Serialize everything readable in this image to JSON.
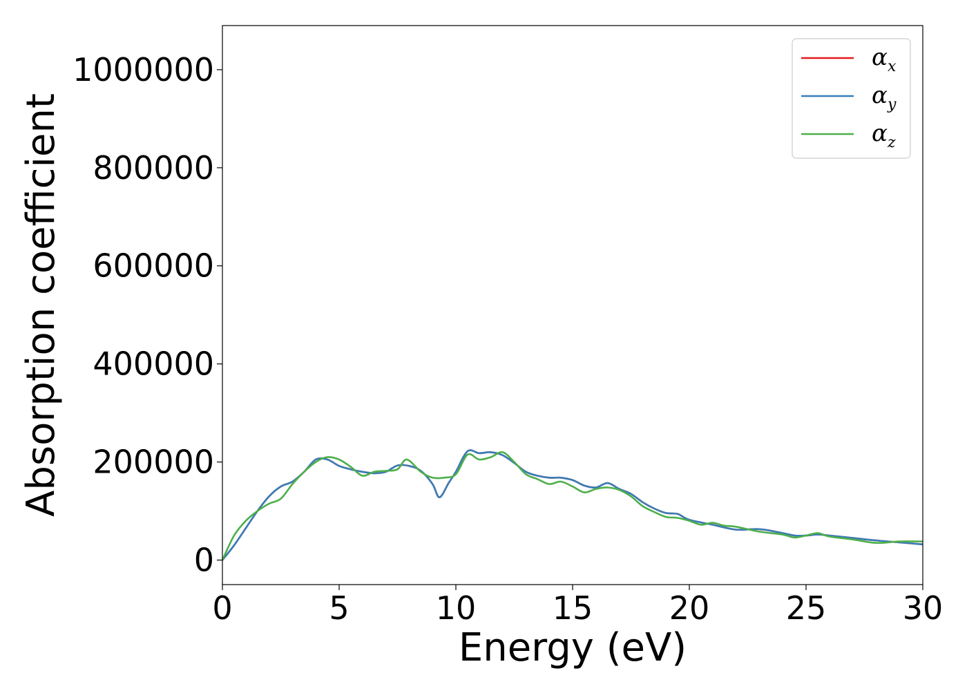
{
  "chart_data": {
    "type": "line",
    "xlabel": "Energy (eV)",
    "ylabel": "Absorption coefficient",
    "xlim": [
      0,
      30
    ],
    "ylim": [
      -50000,
      1090000
    ],
    "xticks": [
      0,
      5,
      10,
      15,
      20,
      25,
      30
    ],
    "yticks": [
      0,
      200000,
      400000,
      600000,
      800000,
      1000000
    ],
    "grid": false,
    "legend_position": "top-right",
    "series": [
      {
        "name": "α_x",
        "label_main": "α",
        "label_sub": "x",
        "color": "#e41a1c",
        "x": [
          0,
          0.5,
          1,
          1.5,
          2,
          2.5,
          3,
          3.5,
          4,
          4.5,
          5,
          5.5,
          6,
          6.5,
          7,
          7.5,
          8,
          8.5,
          9,
          9.3,
          9.7,
          10,
          10.5,
          11,
          11.5,
          12,
          12.5,
          13,
          13.5,
          14,
          14.5,
          15,
          15.5,
          16,
          16.5,
          17,
          17.5,
          18,
          18.5,
          19,
          19.5,
          20,
          21,
          22,
          23,
          24,
          24.5,
          25,
          25.5,
          26,
          27,
          28,
          29,
          30
        ],
        "y": [
          0,
          30000,
          65000,
          100000,
          130000,
          150000,
          160000,
          180000,
          205000,
          205000,
          192000,
          185000,
          180000,
          177000,
          180000,
          193000,
          192000,
          182000,
          155000,
          128000,
          158000,
          180000,
          222000,
          218000,
          220000,
          214000,
          198000,
          180000,
          172000,
          168000,
          168000,
          163000,
          152000,
          148000,
          157000,
          145000,
          135000,
          118000,
          105000,
          96000,
          94000,
          82000,
          72000,
          62000,
          63000,
          55000,
          50000,
          50000,
          52000,
          50000,
          45000,
          40000,
          36000,
          32000
        ]
      },
      {
        "name": "α_y",
        "label_main": "α",
        "label_sub": "y",
        "color": "#377eb8",
        "x": [
          0,
          0.5,
          1,
          1.5,
          2,
          2.5,
          3,
          3.5,
          4,
          4.5,
          5,
          5.5,
          6,
          6.5,
          7,
          7.5,
          8,
          8.5,
          9,
          9.3,
          9.7,
          10,
          10.5,
          11,
          11.5,
          12,
          12.5,
          13,
          13.5,
          14,
          14.5,
          15,
          15.5,
          16,
          16.5,
          17,
          17.5,
          18,
          18.5,
          19,
          19.5,
          20,
          21,
          22,
          23,
          24,
          24.5,
          25,
          25.5,
          26,
          27,
          28,
          29,
          30
        ],
        "y": [
          0,
          30000,
          65000,
          100000,
          130000,
          150000,
          160000,
          180000,
          205000,
          205000,
          192000,
          185000,
          180000,
          177000,
          180000,
          193000,
          192000,
          182000,
          155000,
          128000,
          158000,
          180000,
          222000,
          218000,
          220000,
          214000,
          198000,
          180000,
          172000,
          168000,
          168000,
          163000,
          152000,
          148000,
          157000,
          145000,
          135000,
          118000,
          105000,
          96000,
          94000,
          82000,
          72000,
          62000,
          63000,
          55000,
          50000,
          50000,
          52000,
          50000,
          45000,
          40000,
          36000,
          32000
        ]
      },
      {
        "name": "α_z",
        "label_main": "α",
        "label_sub": "z",
        "color": "#4daf4a",
        "x": [
          0,
          0.5,
          1,
          1.5,
          2,
          2.5,
          3,
          3.5,
          4,
          4.5,
          5,
          5.5,
          6,
          6.5,
          7,
          7.5,
          7.9,
          8.5,
          9,
          9.5,
          10,
          10.5,
          11,
          11.5,
          12,
          12.5,
          13,
          13.5,
          14,
          14.5,
          15,
          15.5,
          16,
          16.5,
          17,
          17.5,
          18,
          18.5,
          19,
          19.5,
          20,
          20.5,
          21,
          21.5,
          22,
          23,
          24,
          24.5,
          25,
          25.5,
          26,
          27,
          28,
          29,
          30
        ],
        "y": [
          0,
          50000,
          80000,
          100000,
          115000,
          125000,
          155000,
          180000,
          200000,
          210000,
          205000,
          190000,
          172000,
          180000,
          182000,
          185000,
          205000,
          180000,
          168000,
          168000,
          175000,
          215000,
          205000,
          210000,
          220000,
          200000,
          175000,
          165000,
          155000,
          160000,
          150000,
          138000,
          145000,
          148000,
          143000,
          130000,
          110000,
          98000,
          88000,
          86000,
          80000,
          72000,
          76000,
          70000,
          68000,
          58000,
          52000,
          46000,
          50000,
          55000,
          48000,
          42000,
          35000,
          38000,
          38000
        ]
      }
    ]
  }
}
